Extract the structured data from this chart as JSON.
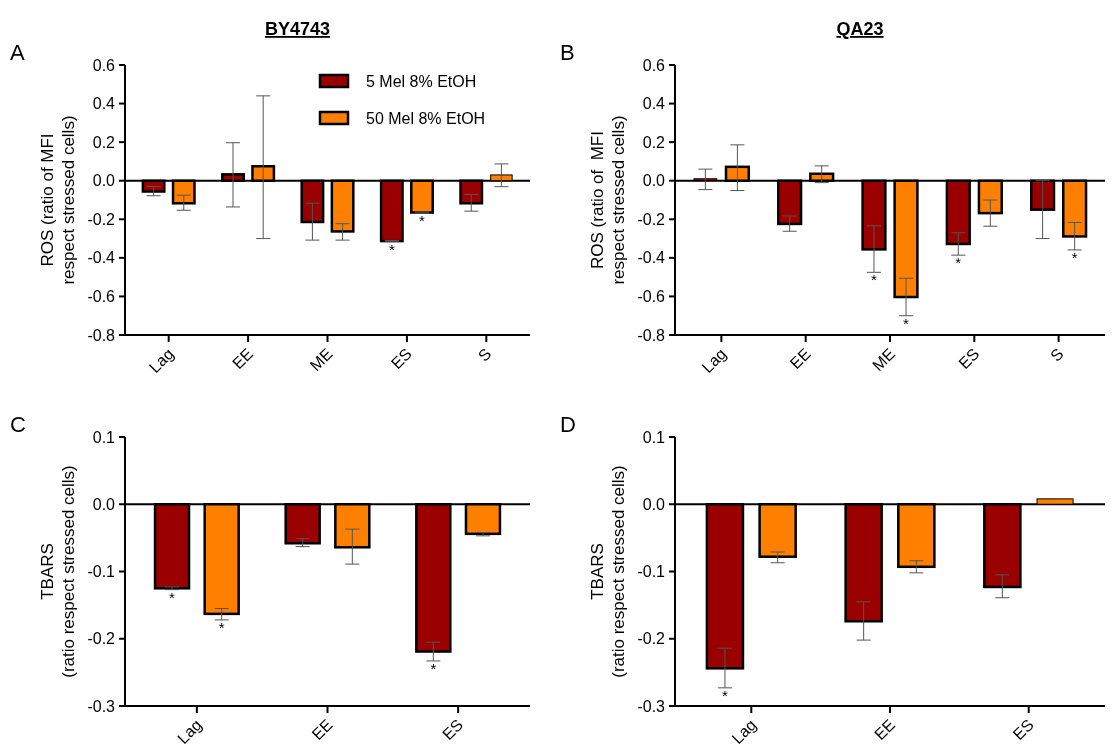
{
  "chart_data": [
    {
      "type": "bar",
      "title": "BY4743",
      "annotations": [
        "A"
      ],
      "ylabel": "ROS (ratio of MFI\nrespect stressed cells)",
      "categories": [
        "Lag",
        "EE",
        "ME",
        "ES",
        "S"
      ],
      "ylim": [
        -0.8,
        0.6
      ],
      "yticks": [
        {
          "value": -0.8,
          "label": "-0.8"
        },
        {
          "value": -0.6,
          "label": "-0.6"
        },
        {
          "value": -0.4,
          "label": "-0.4"
        },
        {
          "value": -0.2,
          "label": "-0.2"
        },
        {
          "value": 0,
          "label": "0.0"
        },
        {
          "value": 0.2,
          "label": "0.2"
        },
        {
          "value": 0.4,
          "label": "0.4"
        },
        {
          "value": 0.6,
          "label": "0.6"
        }
      ],
      "legend": "top right",
      "series": [
        {
          "name": "5 Mel 8% EtOH",
          "color": "#9b0000",
          "values": [
            -0.056,
            0.033,
            -0.214,
            -0.313,
            -0.117
          ],
          "errors": [
            [
              -0.078,
              -0.03
            ],
            [
              -0.136,
              0.197
            ],
            [
              -0.308,
              -0.117
            ],
            [
              -0.316,
              -0.31
            ],
            [
              -0.158,
              -0.071
            ]
          ],
          "value_labels": [
            null,
            null,
            null,
            "*",
            null
          ]
        },
        {
          "name": "50 Mel 8% EtOH",
          "color": "#ff8000",
          "values": [
            -0.117,
            0.075,
            -0.263,
            -0.165,
            0.03
          ],
          "errors": [
            [
              -0.153,
              -0.075
            ],
            [
              -0.3,
              0.44
            ],
            [
              -0.308,
              -0.223
            ],
            [
              -0.168,
              -0.162
            ],
            [
              -0.031,
              0.087
            ]
          ],
          "value_labels": [
            null,
            null,
            null,
            "*",
            null
          ]
        }
      ]
    },
    {
      "type": "bar",
      "title": "QA23",
      "annotations": [
        "B"
      ],
      "ylabel": "ROS (ratio of  MFI\nrespect stressed cells)",
      "categories": [
        "Lag",
        "EE",
        "ME",
        "ES",
        "S"
      ],
      "ylim": [
        -0.8,
        0.6
      ],
      "yticks": [
        {
          "value": -0.8,
          "label": "-0.8"
        },
        {
          "value": -0.6,
          "label": "-0.6"
        },
        {
          "value": -0.4,
          "label": "-0.4"
        },
        {
          "value": -0.2,
          "label": "-0.2"
        },
        {
          "value": 0,
          "label": "0.0"
        },
        {
          "value": 0.2,
          "label": "0.2"
        },
        {
          "value": 0.4,
          "label": "0.4"
        },
        {
          "value": 0.6,
          "label": "0.6"
        }
      ],
      "legend": false,
      "series": [
        {
          "color": "#9b0000",
          "values": [
            0.01,
            -0.224,
            -0.356,
            -0.328,
            -0.15
          ],
          "errors": [
            [
              -0.046,
              0.06
            ],
            [
              -0.262,
              -0.183
            ],
            [
              -0.475,
              -0.234
            ],
            [
              -0.386,
              -0.27
            ],
            [
              -0.3,
              0
            ]
          ],
          "value_labels": [
            null,
            null,
            "*",
            "*",
            null
          ]
        },
        {
          "color": "#ff8000",
          "values": [
            0.072,
            0.036,
            -0.603,
            -0.168,
            -0.289
          ],
          "errors": [
            [
              -0.051,
              0.186
            ],
            [
              -0.01,
              0.077
            ],
            [
              -0.7,
              -0.506
            ],
            [
              -0.236,
              -0.1
            ],
            [
              -0.359,
              -0.217
            ]
          ],
          "value_labels": [
            null,
            null,
            "*",
            null,
            "*"
          ]
        }
      ]
    },
    {
      "type": "bar",
      "annotations": [
        "C"
      ],
      "ylabel": "TBARS\n(ratio respect stressed cells)",
      "categories": [
        "Lag",
        "EE",
        "ES"
      ],
      "ylim": [
        -0.3,
        0.1
      ],
      "yticks": [
        {
          "value": -0.3,
          "label": "-0.3"
        },
        {
          "value": -0.2,
          "label": "-0.2"
        },
        {
          "value": -0.1,
          "label": "-0.1"
        },
        {
          "value": 0,
          "label": "0.0"
        },
        {
          "value": 0.1,
          "label": "0.1"
        }
      ],
      "legend": false,
      "series": [
        {
          "color": "#9b0000",
          "values": [
            -0.125,
            -0.058,
            -0.219
          ],
          "errors": [
            [
              -0.127,
              -0.123
            ],
            [
              -0.063,
              -0.051
            ],
            [
              -0.233,
              -0.205
            ]
          ],
          "value_labels": [
            "*",
            null,
            "*"
          ]
        },
        {
          "color": "#ff8000",
          "values": [
            -0.163,
            -0.064,
            -0.044
          ],
          "errors": [
            [
              -0.172,
              -0.155
            ],
            [
              -0.089,
              -0.037
            ],
            [
              -0.047,
              -0.042
            ]
          ],
          "value_labels": [
            "*",
            null,
            null
          ]
        }
      ]
    },
    {
      "type": "bar",
      "annotations": [
        "D"
      ],
      "ylabel": "TBARS\n(ratio respect stressed cells)",
      "categories": [
        "Lag",
        "EE",
        "ES"
      ],
      "ylim": [
        -0.3,
        0.1
      ],
      "yticks": [
        {
          "value": -0.3,
          "label": "-0.3"
        },
        {
          "value": -0.2,
          "label": "-0.2"
        },
        {
          "value": -0.1,
          "label": "-0.1"
        },
        {
          "value": 0,
          "label": "0.0"
        },
        {
          "value": 0.1,
          "label": "0.1"
        }
      ],
      "legend": false,
      "series": [
        {
          "color": "#9b0000",
          "values": [
            -0.244,
            -0.174,
            -0.123
          ],
          "errors": [
            [
              -0.273,
              -0.214
            ],
            [
              -0.202,
              -0.145
            ],
            [
              -0.139,
              -0.105
            ]
          ],
          "value_labels": [
            "*",
            null,
            null
          ]
        },
        {
          "color": "#ff8000",
          "values": [
            -0.078,
            -0.093,
            0.008
          ],
          "errors": [
            [
              -0.087,
              -0.071
            ],
            [
              -0.102,
              -0.084
            ],
            null
          ],
          "value_labels": [
            null,
            null,
            null
          ]
        }
      ]
    }
  ]
}
